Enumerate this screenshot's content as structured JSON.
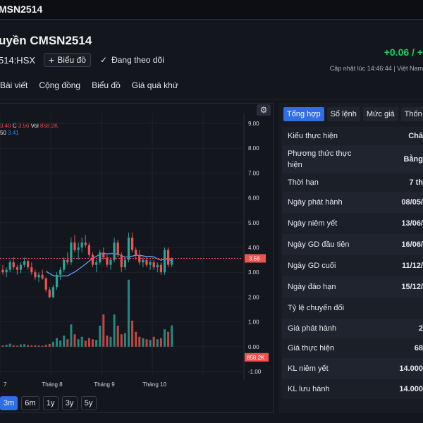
{
  "topbar": {
    "title": "MSN2514"
  },
  "header": {
    "name": "uyền CMSN2514",
    "ticker": "514:HSX",
    "chart_button": "Biểu đồ",
    "follow_label": "Đang theo dõi",
    "change": "+0.06 / +",
    "updated": "Cập nhật lúc  14:46:44 | Việt Nam"
  },
  "nav": [
    "Bài viết",
    "Cộng đồng",
    "Biểu đồ",
    "Giá quá khứ"
  ],
  "legend": {
    "ohlc": {
      "prefix": "3.40",
      "c_label": "C",
      "c": "3.56",
      "vol_label": "Vol",
      "vol": "858.2K"
    },
    "ma": {
      "prefix": "50",
      "value": "3.41"
    }
  },
  "chart_data": {
    "type": "candlestick",
    "y_ticks": [
      "9.00",
      "8.00",
      "7.00",
      "6.00",
      "5.00",
      "4.00",
      "3.00",
      "2.00",
      "1.00",
      "0.00",
      "-1.00"
    ],
    "ylim": [
      -1,
      9
    ],
    "x_ticks": [
      "7",
      "Tháng 8",
      "Tháng 9",
      "Tháng 10"
    ],
    "last_price": "3.56",
    "last_volume": "858.2K",
    "colors": {
      "up": "#26a69a",
      "down": "#ef5350",
      "ma": "#6aa8ff"
    },
    "candles": [
      {
        "o": 3.1,
        "h": 3.3,
        "l": 2.9,
        "c": 3.0
      },
      {
        "o": 3.0,
        "h": 3.2,
        "l": 2.8,
        "c": 3.1
      },
      {
        "o": 3.1,
        "h": 3.5,
        "l": 3.0,
        "c": 3.4
      },
      {
        "o": 3.4,
        "h": 3.6,
        "l": 3.1,
        "c": 3.2
      },
      {
        "o": 3.2,
        "h": 3.3,
        "l": 2.9,
        "c": 3.1
      },
      {
        "o": 3.1,
        "h": 3.4,
        "l": 2.95,
        "c": 3.3
      },
      {
        "o": 3.3,
        "h": 3.6,
        "l": 3.2,
        "c": 3.45
      },
      {
        "o": 3.45,
        "h": 3.5,
        "l": 3.1,
        "c": 3.2
      },
      {
        "o": 3.2,
        "h": 3.4,
        "l": 2.9,
        "c": 3.0
      },
      {
        "o": 3.0,
        "h": 3.1,
        "l": 2.7,
        "c": 2.8
      },
      {
        "o": 2.8,
        "h": 3.0,
        "l": 2.6,
        "c": 2.9
      },
      {
        "o": 2.9,
        "h": 3.1,
        "l": 2.7,
        "c": 2.75
      },
      {
        "o": 2.75,
        "h": 2.8,
        "l": 2.2,
        "c": 2.3
      },
      {
        "o": 2.3,
        "h": 2.4,
        "l": 1.95,
        "c": 2.0
      },
      {
        "o": 2.0,
        "h": 2.5,
        "l": 1.95,
        "c": 2.4
      },
      {
        "o": 2.4,
        "h": 3.0,
        "l": 2.3,
        "c": 2.9
      },
      {
        "o": 2.9,
        "h": 3.2,
        "l": 2.7,
        "c": 3.1
      },
      {
        "o": 3.1,
        "h": 3.6,
        "l": 3.0,
        "c": 3.5
      },
      {
        "o": 3.5,
        "h": 3.8,
        "l": 3.3,
        "c": 3.4
      },
      {
        "o": 3.4,
        "h": 4.4,
        "l": 3.3,
        "c": 4.2
      },
      {
        "o": 4.2,
        "h": 4.5,
        "l": 3.8,
        "c": 3.9
      },
      {
        "o": 3.9,
        "h": 4.2,
        "l": 3.5,
        "c": 4.0
      },
      {
        "o": 4.0,
        "h": 4.4,
        "l": 3.8,
        "c": 4.2
      },
      {
        "o": 4.2,
        "h": 4.5,
        "l": 4.0,
        "c": 4.1
      },
      {
        "o": 4.1,
        "h": 4.2,
        "l": 3.6,
        "c": 3.7
      },
      {
        "o": 3.7,
        "h": 3.8,
        "l": 3.2,
        "c": 3.3
      },
      {
        "o": 3.3,
        "h": 3.5,
        "l": 3.0,
        "c": 3.4
      },
      {
        "o": 3.4,
        "h": 3.9,
        "l": 3.3,
        "c": 3.8
      },
      {
        "o": 3.8,
        "h": 4.0,
        "l": 3.5,
        "c": 3.6
      },
      {
        "o": 3.6,
        "h": 3.7,
        "l": 3.2,
        "c": 3.3
      },
      {
        "o": 3.3,
        "h": 3.6,
        "l": 3.1,
        "c": 3.5
      },
      {
        "o": 3.5,
        "h": 4.4,
        "l": 3.4,
        "c": 4.2
      },
      {
        "o": 4.2,
        "h": 4.3,
        "l": 3.6,
        "c": 3.7
      },
      {
        "o": 3.7,
        "h": 3.8,
        "l": 3.0,
        "c": 3.2
      },
      {
        "o": 3.2,
        "h": 3.6,
        "l": 3.1,
        "c": 3.5
      },
      {
        "o": 3.5,
        "h": 4.6,
        "l": 3.4,
        "c": 4.4
      },
      {
        "o": 4.4,
        "h": 4.6,
        "l": 3.8,
        "c": 3.9
      },
      {
        "o": 3.9,
        "h": 4.0,
        "l": 3.5,
        "c": 3.7
      },
      {
        "o": 3.7,
        "h": 3.9,
        "l": 3.3,
        "c": 3.4
      },
      {
        "o": 3.4,
        "h": 3.6,
        "l": 3.2,
        "c": 3.5
      },
      {
        "o": 3.5,
        "h": 3.6,
        "l": 3.2,
        "c": 3.3
      },
      {
        "o": 3.3,
        "h": 3.5,
        "l": 3.1,
        "c": 3.4
      },
      {
        "o": 3.4,
        "h": 3.5,
        "l": 3.1,
        "c": 3.2
      },
      {
        "o": 3.2,
        "h": 3.4,
        "l": 3.0,
        "c": 3.3
      },
      {
        "o": 3.3,
        "h": 3.4,
        "l": 2.9,
        "c": 3.0
      },
      {
        "o": 3.0,
        "h": 4.0,
        "l": 2.9,
        "c": 3.9
      },
      {
        "o": 3.9,
        "h": 4.0,
        "l": 3.2,
        "c": 3.3
      },
      {
        "o": 3.3,
        "h": 3.6,
        "l": 3.2,
        "c": 3.56
      }
    ],
    "volumes": [
      {
        "v": 0.05,
        "up": false
      },
      {
        "v": 0.08,
        "up": true
      },
      {
        "v": 0.12,
        "up": true
      },
      {
        "v": 0.06,
        "up": false
      },
      {
        "v": 0.04,
        "up": false
      },
      {
        "v": 0.09,
        "up": true
      },
      {
        "v": 0.1,
        "up": true
      },
      {
        "v": 0.07,
        "up": false
      },
      {
        "v": 0.05,
        "up": false
      },
      {
        "v": 0.06,
        "up": false
      },
      {
        "v": 0.05,
        "up": true
      },
      {
        "v": 0.04,
        "up": false
      },
      {
        "v": 0.08,
        "up": false
      },
      {
        "v": 0.11,
        "up": false
      },
      {
        "v": 0.2,
        "up": true
      },
      {
        "v": 0.35,
        "up": true
      },
      {
        "v": 0.25,
        "up": true
      },
      {
        "v": 0.45,
        "up": true
      },
      {
        "v": 0.3,
        "up": false
      },
      {
        "v": 0.9,
        "up": true
      },
      {
        "v": 0.5,
        "up": false
      },
      {
        "v": 0.3,
        "up": true
      },
      {
        "v": 0.4,
        "up": true
      },
      {
        "v": 0.25,
        "up": false
      },
      {
        "v": 0.35,
        "up": false
      },
      {
        "v": 0.3,
        "up": false
      },
      {
        "v": 0.28,
        "up": true
      },
      {
        "v": 0.85,
        "up": true
      },
      {
        "v": 1.3,
        "up": false
      },
      {
        "v": 0.45,
        "up": false
      },
      {
        "v": 0.4,
        "up": true
      },
      {
        "v": 1.3,
        "up": true
      },
      {
        "v": 0.85,
        "up": false
      },
      {
        "v": 0.5,
        "up": false
      },
      {
        "v": 0.55,
        "up": true
      },
      {
        "v": 2.7,
        "up": true
      },
      {
        "v": 1.05,
        "up": false
      },
      {
        "v": 0.6,
        "up": false
      },
      {
        "v": 0.4,
        "up": false
      },
      {
        "v": 0.35,
        "up": true
      },
      {
        "v": 0.3,
        "up": false
      },
      {
        "v": 0.28,
        "up": true
      },
      {
        "v": 0.4,
        "up": false
      },
      {
        "v": 0.3,
        "up": true
      },
      {
        "v": 0.35,
        "up": false
      },
      {
        "v": 0.7,
        "up": true
      },
      {
        "v": 0.6,
        "up": false
      },
      {
        "v": 0.86,
        "up": true
      }
    ]
  },
  "ranges": [
    "3m",
    "6m",
    "1y",
    "3y",
    "5y"
  ],
  "right_tabs": [
    "Tổng hợp",
    "Sổ lệnh",
    "Mức giá",
    "Thốn"
  ],
  "info_rows": [
    {
      "k": "Kiểu thực hiện",
      "v": "Châ"
    },
    {
      "k": "Phương thức thực hiện",
      "v": "Bằng"
    },
    {
      "k": "Thời hạn",
      "v": "7 th"
    },
    {
      "k": "Ngày phát hành",
      "v": "08/05/"
    },
    {
      "k": "Ngày niêm yết",
      "v": "13/06/"
    },
    {
      "k": "Ngày GD đầu tiên",
      "v": "16/06/"
    },
    {
      "k": "Ngày GD cuối",
      "v": "11/12/"
    },
    {
      "k": "Ngày đáo hạn",
      "v": "15/12/"
    },
    {
      "k": "Tỷ lệ chuyển đổi",
      "v": ""
    },
    {
      "k": "Giá phát hành",
      "v": "2"
    },
    {
      "k": "Giá thực hiện",
      "v": "68"
    },
    {
      "k": "KL niêm yết",
      "v": "14.000"
    },
    {
      "k": "KL lưu hành",
      "v": "14.000"
    }
  ]
}
